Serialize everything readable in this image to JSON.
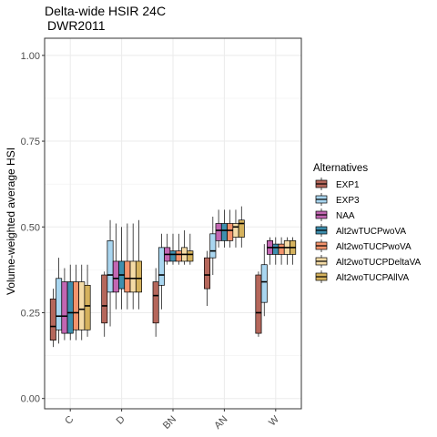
{
  "chart_data": {
    "type": "boxplot",
    "title": "Delta-wide HSIR 24C",
    "subtitle": "DWR2011",
    "xlabel": "",
    "ylabel": "Volume-weighted average HSI",
    "ylim": [
      -0.03,
      1.05
    ],
    "yticks": [
      "0.00",
      "0.25",
      "0.50",
      "0.75",
      "1.00"
    ],
    "ytick_values": [
      0,
      0.25,
      0.5,
      0.75,
      1.0
    ],
    "categories": [
      "C",
      "D",
      "BN",
      "AN",
      "W"
    ],
    "grid": true,
    "legend_position": "right",
    "legend_title": "Alternatives",
    "series": [
      {
        "name": "EXP1",
        "color": "#b5675b",
        "boxes": [
          {
            "min": 0.15,
            "q1": 0.17,
            "median": 0.21,
            "q3": 0.29,
            "max": 0.32
          },
          {
            "min": 0.18,
            "q1": 0.22,
            "median": 0.27,
            "q3": 0.36,
            "max": 0.37
          },
          {
            "min": 0.18,
            "q1": 0.22,
            "median": 0.3,
            "q3": 0.34,
            "max": 0.38
          },
          {
            "min": 0.27,
            "q1": 0.32,
            "median": 0.36,
            "q3": 0.41,
            "max": 0.43
          },
          {
            "min": 0.18,
            "q1": 0.19,
            "median": 0.25,
            "q3": 0.36,
            "max": 0.37
          }
        ]
      },
      {
        "name": "EXP3",
        "color": "#a9d6f0",
        "boxes": [
          {
            "min": 0.16,
            "q1": 0.2,
            "median": 0.24,
            "q3": 0.35,
            "max": 0.41
          },
          {
            "min": 0.21,
            "q1": 0.31,
            "median": 0.36,
            "q3": 0.46,
            "max": 0.52
          },
          {
            "min": 0.26,
            "q1": 0.33,
            "median": 0.36,
            "q3": 0.44,
            "max": 0.48
          },
          {
            "min": 0.36,
            "q1": 0.41,
            "median": 0.43,
            "q3": 0.48,
            "max": 0.53
          },
          {
            "min": 0.24,
            "q1": 0.28,
            "median": 0.34,
            "q3": 0.39,
            "max": 0.45
          }
        ]
      },
      {
        "name": "NAA",
        "color": "#c266b2",
        "boxes": [
          {
            "min": 0.17,
            "q1": 0.19,
            "median": 0.24,
            "q3": 0.34,
            "max": 0.38
          },
          {
            "min": 0.26,
            "q1": 0.31,
            "median": 0.35,
            "q3": 0.4,
            "max": 0.51
          },
          {
            "min": 0.39,
            "q1": 0.4,
            "median": 0.42,
            "q3": 0.44,
            "max": 0.48
          },
          {
            "min": 0.44,
            "q1": 0.46,
            "median": 0.49,
            "q3": 0.51,
            "max": 0.55
          },
          {
            "min": 0.39,
            "q1": 0.42,
            "median": 0.44,
            "q3": 0.46,
            "max": 0.47
          }
        ]
      },
      {
        "name": "Alt2wTUCPwoVA",
        "color": "#3e8fae",
        "boxes": [
          {
            "min": 0.17,
            "q1": 0.19,
            "median": 0.25,
            "q3": 0.34,
            "max": 0.39
          },
          {
            "min": 0.26,
            "q1": 0.32,
            "median": 0.36,
            "q3": 0.4,
            "max": 0.5
          },
          {
            "min": 0.39,
            "q1": 0.4,
            "median": 0.42,
            "q3": 0.43,
            "max": 0.48
          },
          {
            "min": 0.44,
            "q1": 0.46,
            "median": 0.49,
            "q3": 0.51,
            "max": 0.55
          },
          {
            "min": 0.39,
            "q1": 0.42,
            "median": 0.44,
            "q3": 0.45,
            "max": 0.47
          }
        ]
      },
      {
        "name": "Alt2woTUCPwoVA",
        "color": "#f3936c",
        "boxes": [
          {
            "min": 0.17,
            "q1": 0.2,
            "median": 0.25,
            "q3": 0.34,
            "max": 0.39
          },
          {
            "min": 0.26,
            "q1": 0.31,
            "median": 0.35,
            "q3": 0.4,
            "max": 0.51
          },
          {
            "min": 0.39,
            "q1": 0.4,
            "median": 0.42,
            "q3": 0.43,
            "max": 0.48
          },
          {
            "min": 0.44,
            "q1": 0.46,
            "median": 0.49,
            "q3": 0.51,
            "max": 0.55
          },
          {
            "min": 0.39,
            "q1": 0.42,
            "median": 0.44,
            "q3": 0.45,
            "max": 0.47
          }
        ]
      },
      {
        "name": "Alt2woTUCPDeltaVA",
        "color": "#f4dba6",
        "boxes": [
          {
            "min": 0.17,
            "q1": 0.2,
            "median": 0.26,
            "q3": 0.34,
            "max": 0.39
          },
          {
            "min": 0.26,
            "q1": 0.31,
            "median": 0.35,
            "q3": 0.4,
            "max": 0.51
          },
          {
            "min": 0.39,
            "q1": 0.4,
            "median": 0.42,
            "q3": 0.44,
            "max": 0.49
          },
          {
            "min": 0.44,
            "q1": 0.47,
            "median": 0.5,
            "q3": 0.51,
            "max": 0.55
          },
          {
            "min": 0.39,
            "q1": 0.42,
            "median": 0.44,
            "q3": 0.46,
            "max": 0.47
          }
        ]
      },
      {
        "name": "Alt2woTUCPAllVA",
        "color": "#d5b25d",
        "boxes": [
          {
            "min": 0.18,
            "q1": 0.2,
            "median": 0.27,
            "q3": 0.33,
            "max": 0.39
          },
          {
            "min": 0.26,
            "q1": 0.31,
            "median": 0.35,
            "q3": 0.4,
            "max": 0.52
          },
          {
            "min": 0.39,
            "q1": 0.4,
            "median": 0.42,
            "q3": 0.43,
            "max": 0.48
          },
          {
            "min": 0.44,
            "q1": 0.47,
            "median": 0.51,
            "q3": 0.52,
            "max": 0.56
          },
          {
            "min": 0.39,
            "q1": 0.42,
            "median": 0.44,
            "q3": 0.46,
            "max": 0.47
          }
        ]
      }
    ]
  }
}
